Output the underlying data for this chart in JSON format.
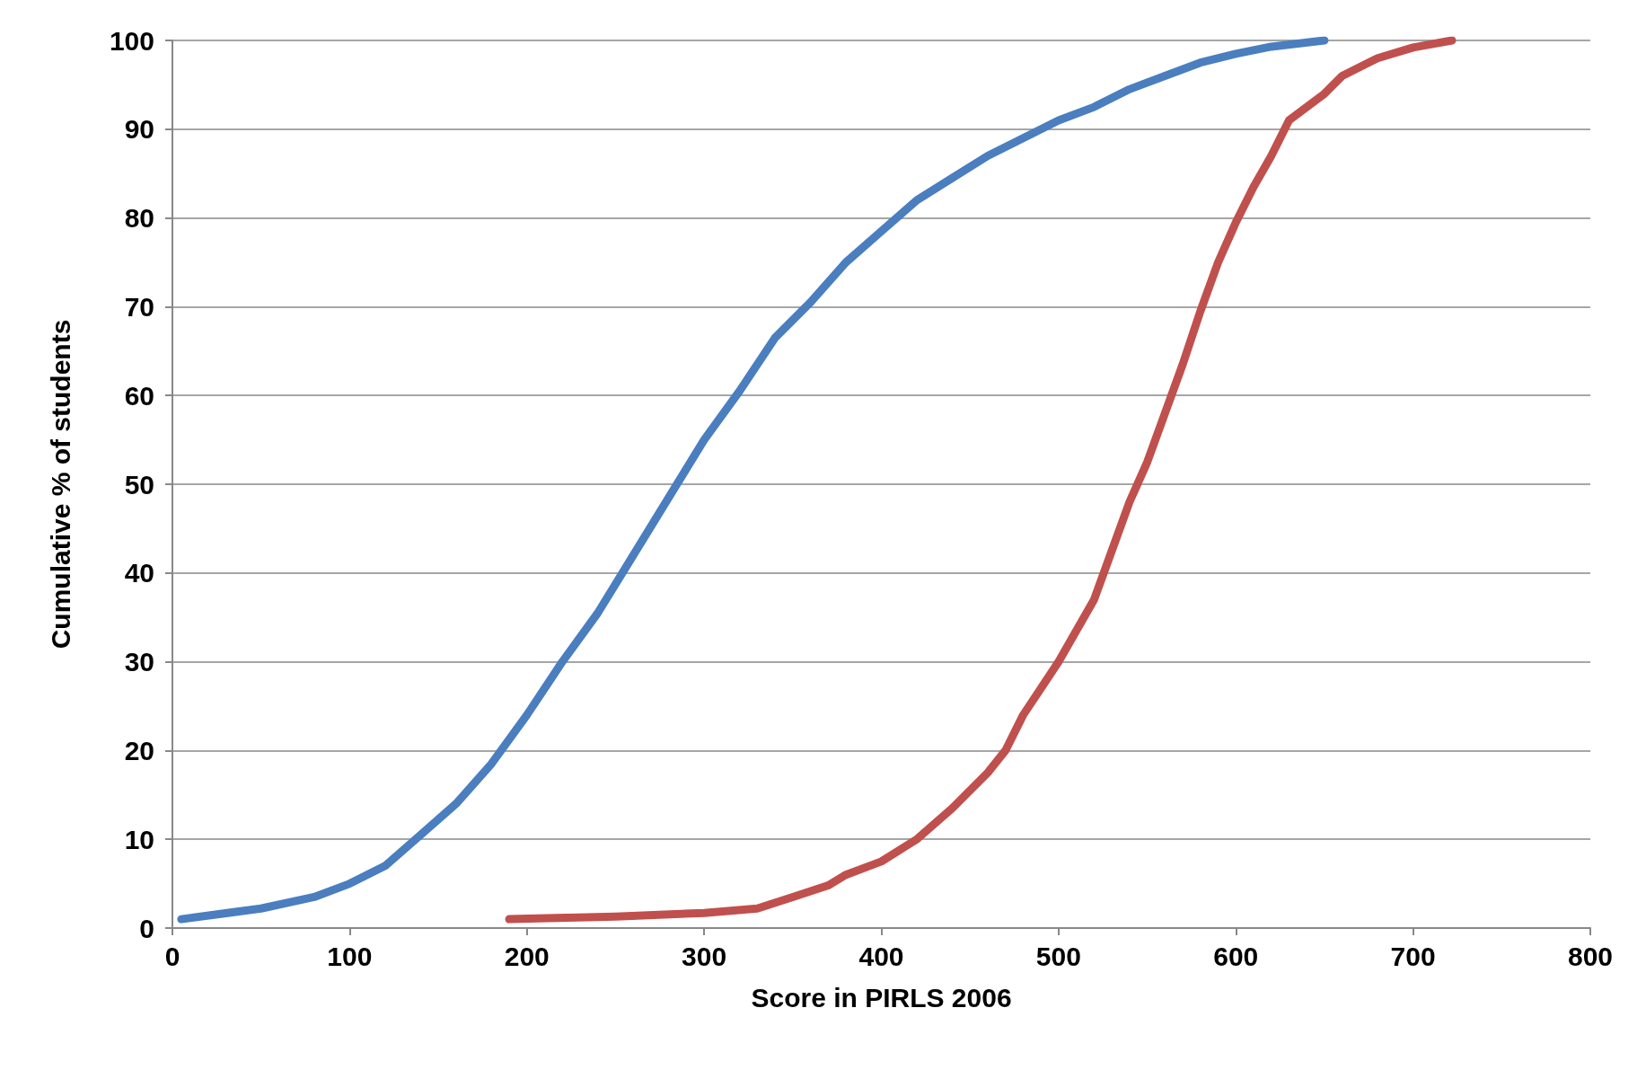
{
  "chart_data": {
    "type": "line",
    "xlabel": "Score in PIRLS 2006",
    "ylabel": "Cumulative % of students",
    "xlim": [
      0,
      800
    ],
    "xticks": [
      0,
      100,
      200,
      300,
      400,
      500,
      600,
      700,
      800
    ],
    "ylim": [
      0,
      100
    ],
    "yticks": [
      0,
      10,
      20,
      30,
      40,
      50,
      60,
      70,
      80,
      90,
      100
    ],
    "grid": "y",
    "line_style": "solid",
    "series": [
      {
        "color": "#4a7ebf",
        "x": [
          5,
          50,
          80,
          100,
          120,
          140,
          160,
          180,
          200,
          220,
          240,
          260,
          280,
          300,
          320,
          340,
          360,
          380,
          400,
          420,
          440,
          460,
          480,
          500,
          520,
          540,
          560,
          580,
          600,
          620,
          650
        ],
        "values": [
          1,
          2.2,
          3.5,
          5,
          7,
          10.5,
          14,
          18.5,
          24,
          30,
          35.5,
          42,
          48.5,
          55,
          60.5,
          66.5,
          70.5,
          75,
          78.5,
          82,
          84.5,
          87,
          89,
          91,
          92.5,
          94.5,
          96,
          97.5,
          98.5,
          99.3,
          100
        ]
      },
      {
        "color": "#c0504d",
        "x": [
          190,
          250,
          300,
          330,
          350,
          370,
          380,
          400,
          420,
          440,
          460,
          470,
          480,
          500,
          520,
          530,
          540,
          550,
          560,
          570,
          580,
          590,
          600,
          610,
          620,
          630,
          650,
          660,
          680,
          700,
          722
        ],
        "values": [
          1,
          1.3,
          1.7,
          2.2,
          3.5,
          4.8,
          6,
          7.5,
          10,
          13.5,
          17.5,
          20,
          24,
          30,
          37,
          42.5,
          48,
          52.5,
          58,
          63.5,
          69.5,
          75,
          79.5,
          83.5,
          87,
          91,
          94,
          96,
          98,
          99.2,
          100
        ]
      }
    ]
  }
}
